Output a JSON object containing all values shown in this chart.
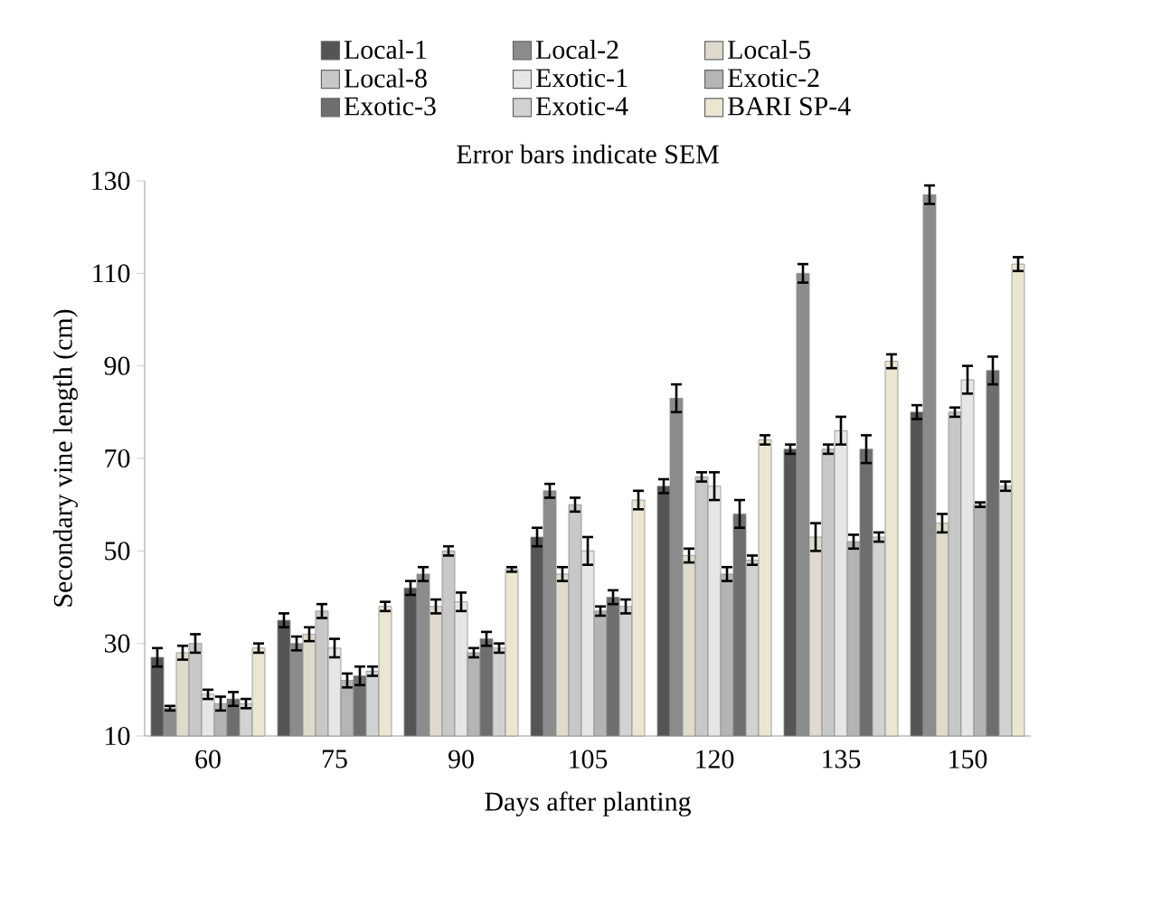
{
  "chart_data": {
    "type": "bar",
    "xlabel": "Days after planting",
    "ylabel": "Secondary vine length (cm)",
    "annotations": [
      "Error bars indicate SEM"
    ],
    "categories": [
      "60",
      "75",
      "90",
      "105",
      "120",
      "135",
      "150"
    ],
    "ylim": [
      10,
      130
    ],
    "yticks": [
      10,
      30,
      50,
      70,
      90,
      110,
      130
    ],
    "legend": "top",
    "grid": false,
    "series": [
      {
        "name": "Local-1",
        "color": "#555555",
        "values": [
          27,
          35,
          42,
          53,
          64,
          72,
          80
        ],
        "errors": [
          2,
          1.5,
          1.5,
          2,
          1.5,
          1,
          1.5
        ]
      },
      {
        "name": "Local-2",
        "color": "#8c8c8c",
        "values": [
          16,
          30,
          45,
          63,
          83,
          110,
          127
        ],
        "errors": [
          0.5,
          1.5,
          1.5,
          1.5,
          3,
          2,
          2
        ]
      },
      {
        "name": "Local-5",
        "color": "#dfdbcc",
        "values": [
          28,
          32,
          38,
          45,
          49,
          53,
          56
        ],
        "errors": [
          1.5,
          1.5,
          1.5,
          1.5,
          1.5,
          3,
          2
        ]
      },
      {
        "name": "Local-8",
        "color": "#c8c8c8",
        "values": [
          30,
          37,
          50,
          60,
          66,
          72,
          80
        ],
        "errors": [
          2,
          1.5,
          1,
          1.5,
          1,
          1,
          1
        ]
      },
      {
        "name": "Exotic-1",
        "color": "#e6e6e6",
        "values": [
          19,
          29,
          39,
          50,
          64,
          76,
          87
        ],
        "errors": [
          1,
          2,
          2,
          3,
          3,
          3,
          3
        ]
      },
      {
        "name": "Exotic-2",
        "color": "#b4b4b4",
        "values": [
          17,
          22,
          28,
          37,
          45,
          52,
          60
        ],
        "errors": [
          1.5,
          1.5,
          1,
          1,
          1.5,
          1.5,
          0.5
        ]
      },
      {
        "name": "Exotic-3",
        "color": "#6e6e6e",
        "values": [
          18,
          23,
          31,
          40,
          58,
          72,
          89
        ],
        "errors": [
          1.5,
          2,
          1.5,
          1.5,
          3,
          3,
          3
        ]
      },
      {
        "name": "Exotic-4",
        "color": "#d2d2d2",
        "values": [
          17,
          24,
          29,
          38,
          48,
          53,
          64
        ],
        "errors": [
          1,
          1,
          1,
          1.5,
          1,
          1,
          1
        ]
      },
      {
        "name": "BARI SP-4",
        "color": "#ebe6d2",
        "values": [
          29,
          38,
          46,
          61,
          74,
          91,
          112
        ],
        "errors": [
          1,
          1,
          0.5,
          2,
          1,
          1.5,
          1.5
        ]
      }
    ]
  }
}
